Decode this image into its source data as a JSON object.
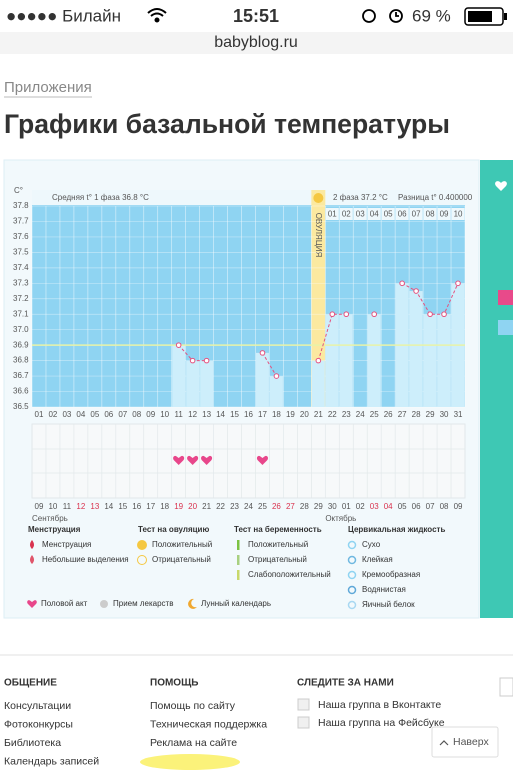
{
  "status_bar": {
    "carrier": "●●●●● Билайн",
    "time": "15:51",
    "battery": "69 %"
  },
  "url": "babyblog.ru",
  "breadcrumb": "Приложения",
  "title": "Графики базальной температуры",
  "chart_data": {
    "type": "line",
    "y_label": "C°",
    "phase1": "Средняя t° 1 фаза 36.8 °C",
    "phase2": "2 фаза 37.2 °C",
    "difference": "Разница t° 0.400000",
    "ovulation": {
      "label": "ОВУЛЯЦИЯ",
      "day": "21"
    },
    "categories": [
      "01",
      "02",
      "03",
      "04",
      "05",
      "06",
      "07",
      "08",
      "09",
      "10",
      "11",
      "12",
      "13",
      "14",
      "15",
      "16",
      "17",
      "18",
      "19",
      "20",
      "21",
      "22",
      "23",
      "24",
      "25",
      "26",
      "27",
      "28",
      "29",
      "30",
      "31"
    ],
    "values": [
      null,
      null,
      null,
      null,
      null,
      null,
      null,
      null,
      null,
      null,
      36.9,
      36.8,
      36.8,
      null,
      null,
      null,
      36.85,
      36.7,
      null,
      null,
      36.8,
      37.1,
      37.1,
      null,
      37.1,
      null,
      37.3,
      37.25,
      37.1,
      37.1,
      37.3
    ],
    "phase2_days": [
      "01",
      "02",
      "03",
      "04",
      "05",
      "06",
      "07",
      "08",
      "09",
      "10"
    ],
    "dates": [
      "09",
      "10",
      "11",
      "12",
      "13",
      "14",
      "15",
      "16",
      "17",
      "18",
      "19",
      "20",
      "21",
      "22",
      "23",
      "24",
      "25",
      "26",
      "27",
      "28",
      "29",
      "30",
      "01",
      "02",
      "03",
      "04",
      "05",
      "06",
      "07",
      "08",
      "09"
    ],
    "red_dates": [
      "12",
      "13",
      "19",
      "20",
      "26",
      "27",
      "03",
      "04"
    ],
    "months": [
      "Сентябрь",
      "Октябрь"
    ],
    "intercourse_days": [
      "11",
      "12",
      "13",
      "17"
    ],
    "coverline": 36.9,
    "color": "#e5517f",
    "bar_color": "#cdeefb",
    "plot_color": "#8fd4f2",
    "ovulation_color": "#fbe9a0",
    "ylim": [
      36.5,
      37.8
    ],
    "yticks": [
      36.5,
      36.6,
      36.7,
      36.8,
      36.9,
      {
        "value": 37,
        "label": "37.0"
      },
      37.1,
      37.2,
      37.3,
      37.4,
      37.5,
      37.6,
      37.7,
      37.8
    ],
    "grid": true
  },
  "legend": {
    "columns": [
      {
        "title": "Менструация",
        "items": [
          "Менструация",
          "Небольшие выделения"
        ]
      },
      {
        "title": "Тест на овуляцию",
        "items": [
          "Положительный",
          "Отрицательный"
        ]
      },
      {
        "title": "Тест на беременность",
        "items": [
          "Положительный",
          "Отрицательный",
          "Слабоположительный"
        ]
      },
      {
        "title": "Цервикальная жидкость",
        "items": [
          "Сухо",
          "Клейкая",
          "Кремообразная",
          "Водянистая",
          "Яичный белок"
        ]
      }
    ],
    "extra": [
      "Половой акт",
      "Прием лекарств",
      "Лунный календарь"
    ]
  },
  "footer": {
    "columns": [
      {
        "title": "ОБЩЕНИЕ",
        "links": [
          "Консультации",
          "Фотоконкурсы",
          "Библиотека",
          "Календарь записей"
        ]
      },
      {
        "title": "ПОМОЩЬ",
        "links": [
          "Помощь по сайту",
          "Техническая поддержка",
          "Реклама на сайте"
        ]
      },
      {
        "title": "СЛЕДИТЕ ЗА НАМИ",
        "links": [
          "Наша группа в Вконтакте",
          "Наша группа на Фейсбуке"
        ]
      }
    ],
    "back_to_top": "Наверх"
  }
}
